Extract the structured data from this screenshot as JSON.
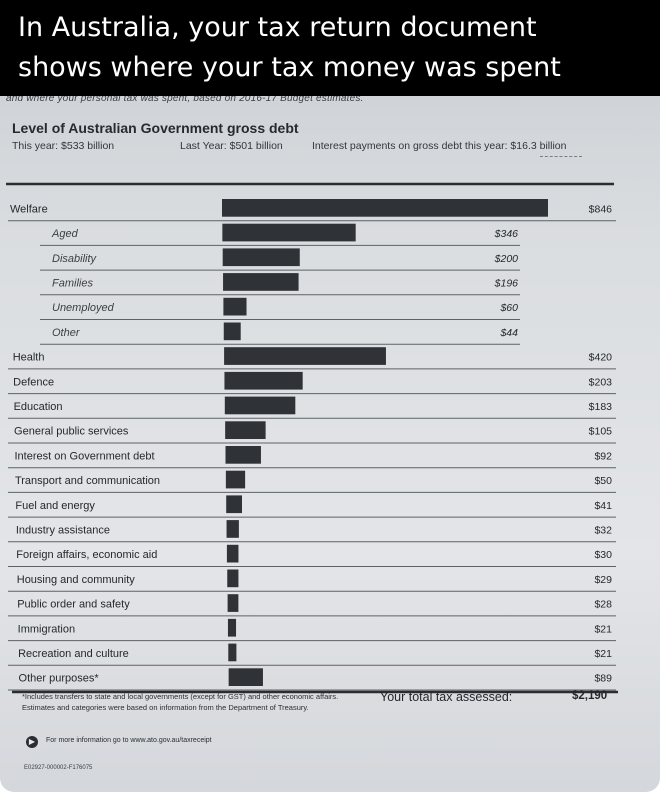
{
  "caption": {
    "line1": "In Australia, your tax return document",
    "line2": "shows where your tax money was spent"
  },
  "document": {
    "cut_off_line": "and where your personal tax was spent, based on 2016-17 Budget estimates.",
    "debt_title": "Level of Australian Government gross debt",
    "this_year": "This year: $533 billion",
    "last_year": "Last Year: $501 billion",
    "interest": "Interest payments on gross debt this year: $16.3 billion",
    "footnote1": "*Includes transfers to state and local governments (except for GST) and other economic affairs.",
    "footnote2": "Estimates and categories were based on information from the Department of Treasury.",
    "total_label": "Your total tax assessed:",
    "total_value": "$2,190",
    "info_text": "For more information go to www.ato.gov.au/taxreceipt",
    "ref_code": "E02927-000002-F176075"
  },
  "chart_data": {
    "type": "bar",
    "orientation": "horizontal",
    "unit": "$",
    "xlim": [
      0,
      846
    ],
    "categories": [
      "Welfare",
      "Aged",
      "Disability",
      "Families",
      "Unemployed",
      "Other",
      "Health",
      "Defence",
      "Education",
      "General public services",
      "Interest on Government debt",
      "Transport and communication",
      "Fuel and energy",
      "Industry assistance",
      "Foreign affairs, economic aid",
      "Housing and community",
      "Public order and safety",
      "Immigration",
      "Recreation and culture",
      "Other purposes*"
    ],
    "values": [
      846,
      346,
      200,
      196,
      60,
      44,
      420,
      203,
      183,
      105,
      92,
      50,
      41,
      32,
      30,
      29,
      28,
      21,
      21,
      89
    ],
    "value_labels": [
      "$846",
      "$346",
      "$200",
      "$196",
      "$60",
      "$44",
      "$420",
      "$203",
      "$183",
      "$105",
      "$92",
      "$50",
      "$41",
      "$32",
      "$30",
      "$29",
      "$28",
      "$21",
      "$21",
      "$89"
    ],
    "subcategory": [
      false,
      true,
      true,
      true,
      true,
      true,
      false,
      false,
      false,
      false,
      false,
      false,
      false,
      false,
      false,
      false,
      false,
      false,
      false,
      false
    ],
    "bar_color": "#2f3237"
  }
}
